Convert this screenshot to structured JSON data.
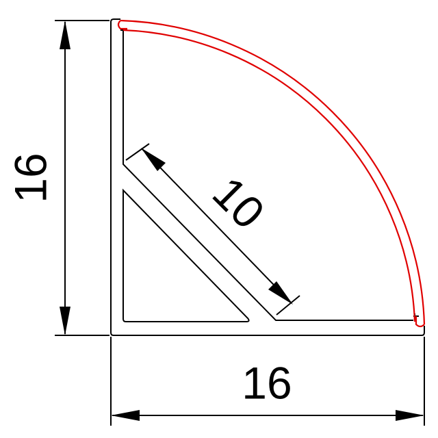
{
  "dimensions": {
    "height": "16",
    "width": "16",
    "diagonal": "10"
  }
}
